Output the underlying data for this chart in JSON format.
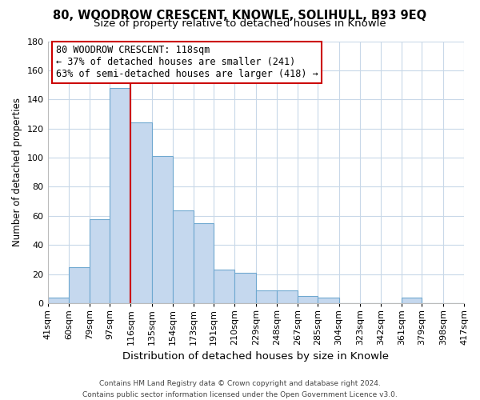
{
  "title": "80, WOODROW CRESCENT, KNOWLE, SOLIHULL, B93 9EQ",
  "subtitle": "Size of property relative to detached houses in Knowle",
  "xlabel": "Distribution of detached houses by size in Knowle",
  "ylabel": "Number of detached properties",
  "bar_values": [
    4,
    25,
    58,
    148,
    124,
    101,
    64,
    55,
    23,
    21,
    9,
    9,
    5,
    4,
    0,
    0,
    0,
    4,
    0,
    0
  ],
  "bin_edges": [
    41,
    60,
    79,
    97,
    116,
    135,
    154,
    173,
    191,
    210,
    229,
    248,
    267,
    285,
    304,
    323,
    342,
    361,
    379,
    398,
    417
  ],
  "bin_labels": [
    "41sqm",
    "60sqm",
    "79sqm",
    "97sqm",
    "116sqm",
    "135sqm",
    "154sqm",
    "173sqm",
    "191sqm",
    "210sqm",
    "229sqm",
    "248sqm",
    "267sqm",
    "285sqm",
    "304sqm",
    "323sqm",
    "342sqm",
    "361sqm",
    "379sqm",
    "398sqm",
    "417sqm"
  ],
  "bar_color": "#c5d8ee",
  "bar_edgecolor": "#6fa8d0",
  "vline_x": 116,
  "vline_color": "#cc0000",
  "ylim": [
    0,
    180
  ],
  "yticks": [
    0,
    20,
    40,
    60,
    80,
    100,
    120,
    140,
    160,
    180
  ],
  "annotation_line1": "80 WOODROW CRESCENT: 118sqm",
  "annotation_line2": "← 37% of detached houses are smaller (241)",
  "annotation_line3": "63% of semi-detached houses are larger (418) →",
  "footer_line1": "Contains HM Land Registry data © Crown copyright and database right 2024.",
  "footer_line2": "Contains public sector information licensed under the Open Government Licence v3.0.",
  "title_fontsize": 10.5,
  "subtitle_fontsize": 9.5,
  "ylabel_fontsize": 8.5,
  "xlabel_fontsize": 9.5,
  "tick_fontsize": 8,
  "annotation_fontsize": 8.5,
  "footer_fontsize": 6.5,
  "background_color": "#ffffff",
  "grid_color": "#c8d8e8",
  "annotation_edgecolor": "#cc0000"
}
